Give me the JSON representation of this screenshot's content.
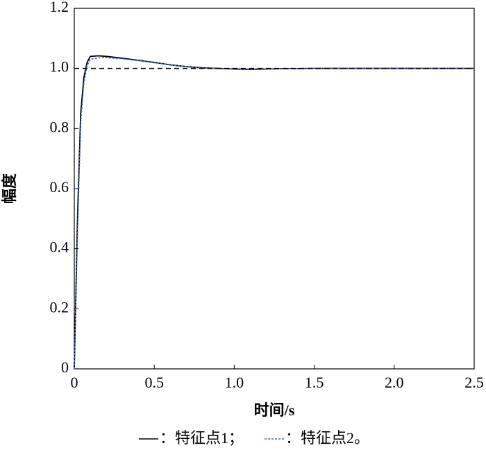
{
  "chart_data": {
    "type": "line",
    "x_label": "时间/s",
    "y_label": "幅度",
    "xlim": [
      0,
      2.5
    ],
    "ylim": [
      0,
      1.2
    ],
    "xticks": [
      0,
      0.5,
      {
        "value": 1,
        "label": "1.0"
      },
      1.5,
      {
        "value": 2,
        "label": "2.0"
      },
      2.5
    ],
    "yticks": [
      0,
      0.2,
      0.4,
      0.6,
      0.8,
      {
        "value": 1,
        "label": "1.0"
      },
      1.2
    ],
    "series": [
      {
        "name": "：特征点1；",
        "color": "#000000",
        "dashed": false,
        "x": [
          0,
          0.02,
          0.04,
          0.06,
          0.08,
          0.1,
          0.15,
          0.2,
          0.3,
          0.4,
          0.5,
          0.6,
          0.7,
          0.8,
          0.9,
          1.0,
          1.1,
          1.2,
          1.3,
          1.5,
          2.0,
          2.5
        ],
        "values": [
          0,
          0.5,
          0.85,
          0.97,
          1.02,
          1.04,
          1.042,
          1.04,
          1.034,
          1.027,
          1.02,
          1.012,
          1.006,
          1.002,
          1.0,
          0.998,
          0.997,
          0.998,
          0.999,
          1.0,
          1.0,
          1.0
        ]
      },
      {
        "name": "：特征点2。",
        "color": "#4a63c8",
        "dashed": true,
        "x": [
          0,
          0.02,
          0.04,
          0.06,
          0.08,
          0.1,
          0.15,
          0.2,
          0.3,
          0.4,
          0.5,
          0.6,
          0.7,
          0.8,
          0.9,
          1.0,
          1.1,
          1.2,
          1.3,
          1.5,
          2.0,
          2.5
        ],
        "values": [
          0,
          0.45,
          0.82,
          0.95,
          1.01,
          1.03,
          1.035,
          1.036,
          1.032,
          1.026,
          1.019,
          1.012,
          1.006,
          1.002,
          1.0,
          0.999,
          0.998,
          0.998,
          0.999,
          1.0,
          1.0,
          1.0
        ]
      },
      {
        "color": "#000000",
        "dashed": true,
        "x": [
          0,
          2.5
        ],
        "values": [
          1,
          1
        ]
      }
    ]
  }
}
